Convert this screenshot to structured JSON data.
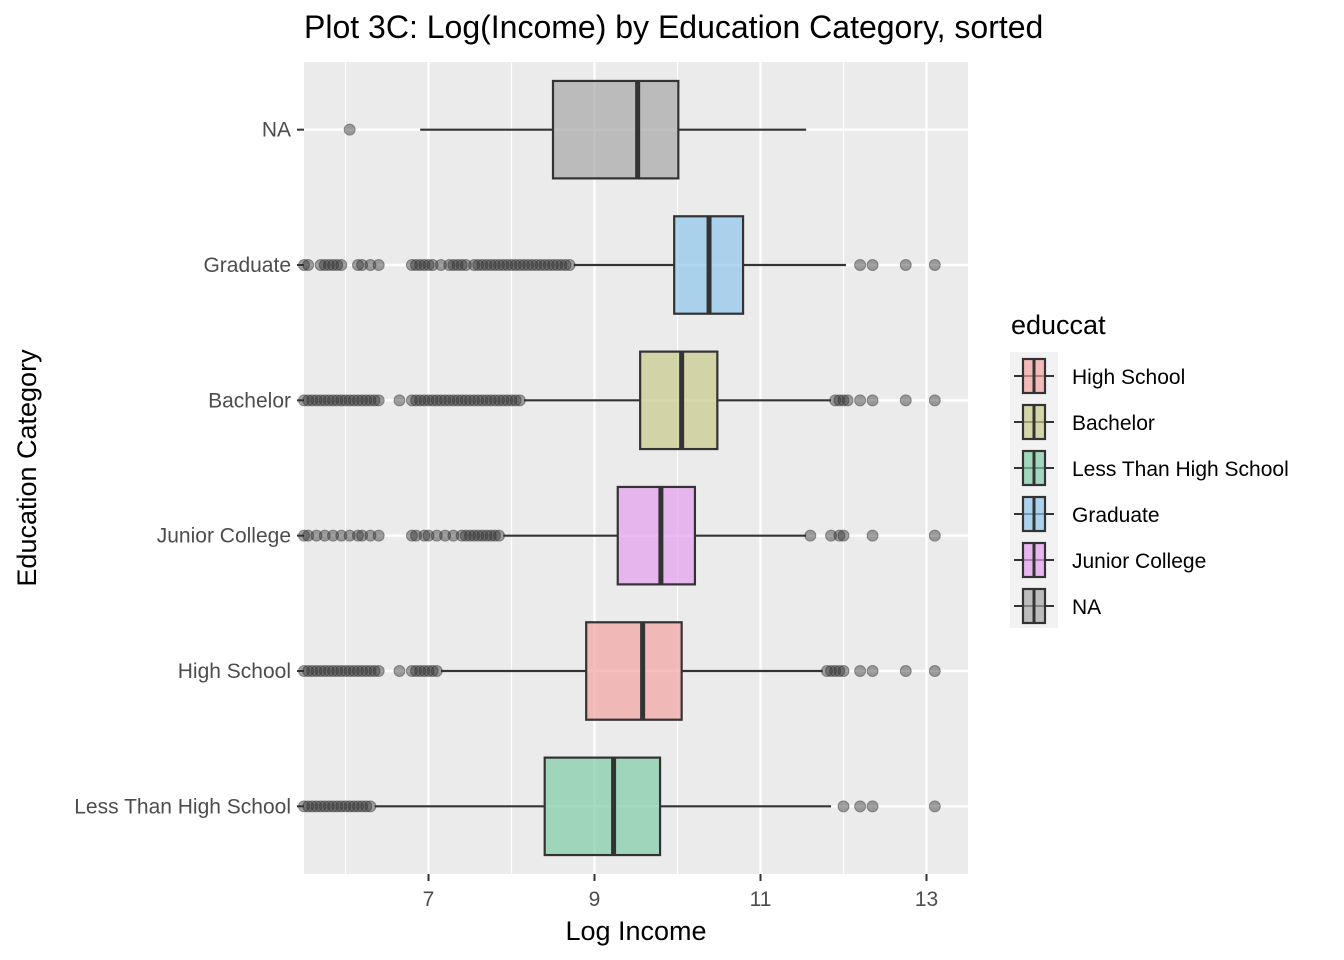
{
  "chart_data": {
    "type": "boxplot",
    "title": "Plot 3C: Log(Income) by Education Category, sorted",
    "xlabel": "Log Income",
    "ylabel": "Education Category",
    "xlim": [
      5.5,
      13.5
    ],
    "x_ticks": [
      7,
      9,
      11,
      13
    ],
    "orientation": "horizontal",
    "grid": true,
    "categories": [
      "Less Than High School",
      "High School",
      "Junior College",
      "Bachelor",
      "Graduate",
      "NA"
    ],
    "series": [
      {
        "category": "Less Than High School",
        "color": "#7FCDA7",
        "whisker_low": 6.35,
        "q1": 8.4,
        "median": 9.23,
        "q3": 9.79,
        "whisker_high": 11.85,
        "outliers": [
          5.5,
          5.55,
          5.6,
          5.65,
          5.7,
          5.75,
          5.8,
          5.85,
          5.9,
          5.95,
          6.0,
          6.05,
          6.1,
          6.15,
          6.2,
          6.25,
          6.3,
          12.0,
          12.2,
          12.35,
          13.1
        ]
      },
      {
        "category": "High School",
        "color": "#F4A3A3",
        "whisker_low": 7.15,
        "q1": 8.9,
        "median": 9.58,
        "q3": 10.05,
        "whisker_high": 11.75,
        "outliers": [
          5.5,
          5.55,
          5.6,
          5.65,
          5.7,
          5.75,
          5.8,
          5.85,
          5.9,
          5.95,
          6.0,
          6.05,
          6.1,
          6.15,
          6.2,
          6.25,
          6.3,
          6.35,
          6.4,
          6.65,
          6.8,
          6.85,
          6.9,
          6.95,
          7.0,
          7.05,
          7.1,
          11.8,
          11.85,
          11.9,
          11.95,
          12.0,
          12.2,
          12.35,
          12.75,
          13.1
        ]
      },
      {
        "category": "Junior College",
        "color": "#E49EF0",
        "whisker_low": 7.9,
        "q1": 9.28,
        "median": 9.8,
        "q3": 10.21,
        "whisker_high": 11.55,
        "outliers": [
          5.5,
          5.55,
          5.65,
          5.75,
          5.85,
          5.95,
          6.05,
          6.15,
          6.2,
          6.3,
          6.4,
          6.8,
          6.85,
          6.95,
          7.0,
          7.1,
          7.2,
          7.3,
          7.4,
          7.45,
          7.5,
          7.55,
          7.6,
          7.65,
          7.7,
          7.75,
          7.8,
          7.85,
          11.6,
          11.85,
          11.95,
          12.0,
          12.35,
          13.1
        ]
      },
      {
        "category": "Bachelor",
        "color": "#C8C98A",
        "whisker_low": 8.15,
        "q1": 9.55,
        "median": 10.05,
        "q3": 10.48,
        "whisker_high": 11.85,
        "outliers": [
          5.5,
          5.55,
          5.6,
          5.65,
          5.7,
          5.75,
          5.8,
          5.85,
          5.9,
          5.95,
          6.0,
          6.05,
          6.1,
          6.15,
          6.2,
          6.25,
          6.3,
          6.35,
          6.4,
          6.65,
          6.8,
          6.85,
          6.9,
          6.95,
          7.0,
          7.05,
          7.1,
          7.15,
          7.2,
          7.25,
          7.3,
          7.35,
          7.4,
          7.45,
          7.5,
          7.55,
          7.6,
          7.65,
          7.7,
          7.75,
          7.8,
          7.85,
          7.9,
          7.95,
          8.0,
          8.05,
          8.1,
          11.9,
          11.95,
          12.0,
          12.05,
          12.2,
          12.35,
          12.75,
          13.1
        ]
      },
      {
        "category": "Graduate",
        "color": "#8EC6EC",
        "whisker_low": 8.75,
        "q1": 9.96,
        "median": 10.38,
        "q3": 10.79,
        "whisker_high": 12.03,
        "outliers": [
          5.5,
          5.55,
          5.7,
          5.75,
          5.8,
          5.85,
          5.9,
          5.95,
          6.15,
          6.2,
          6.3,
          6.4,
          6.8,
          6.85,
          6.9,
          6.95,
          7.0,
          7.05,
          7.15,
          7.25,
          7.3,
          7.35,
          7.4,
          7.45,
          7.55,
          7.6,
          7.65,
          7.7,
          7.75,
          7.8,
          7.85,
          7.9,
          7.95,
          8.0,
          8.05,
          8.1,
          8.15,
          8.2,
          8.25,
          8.3,
          8.35,
          8.4,
          8.45,
          8.5,
          8.55,
          8.6,
          8.65,
          8.7,
          12.2,
          12.35,
          12.75,
          13.1
        ]
      },
      {
        "category": "NA",
        "color": "#A6A6A6",
        "whisker_low": 6.9,
        "q1": 8.5,
        "median": 9.52,
        "q3": 10.01,
        "whisker_high": 11.55,
        "outliers": [
          6.05
        ]
      }
    ],
    "legend": {
      "title": "educcat",
      "placement": "right",
      "items": [
        {
          "label": "High School",
          "color": "#F4A3A3"
        },
        {
          "label": "Bachelor",
          "color": "#C8C98A"
        },
        {
          "label": "Less Than High School",
          "color": "#7FCDA7"
        },
        {
          "label": "Graduate",
          "color": "#8EC6EC"
        },
        {
          "label": "Junior College",
          "color": "#E49EF0"
        },
        {
          "label": "NA",
          "color": "#A6A6A6"
        }
      ]
    }
  }
}
